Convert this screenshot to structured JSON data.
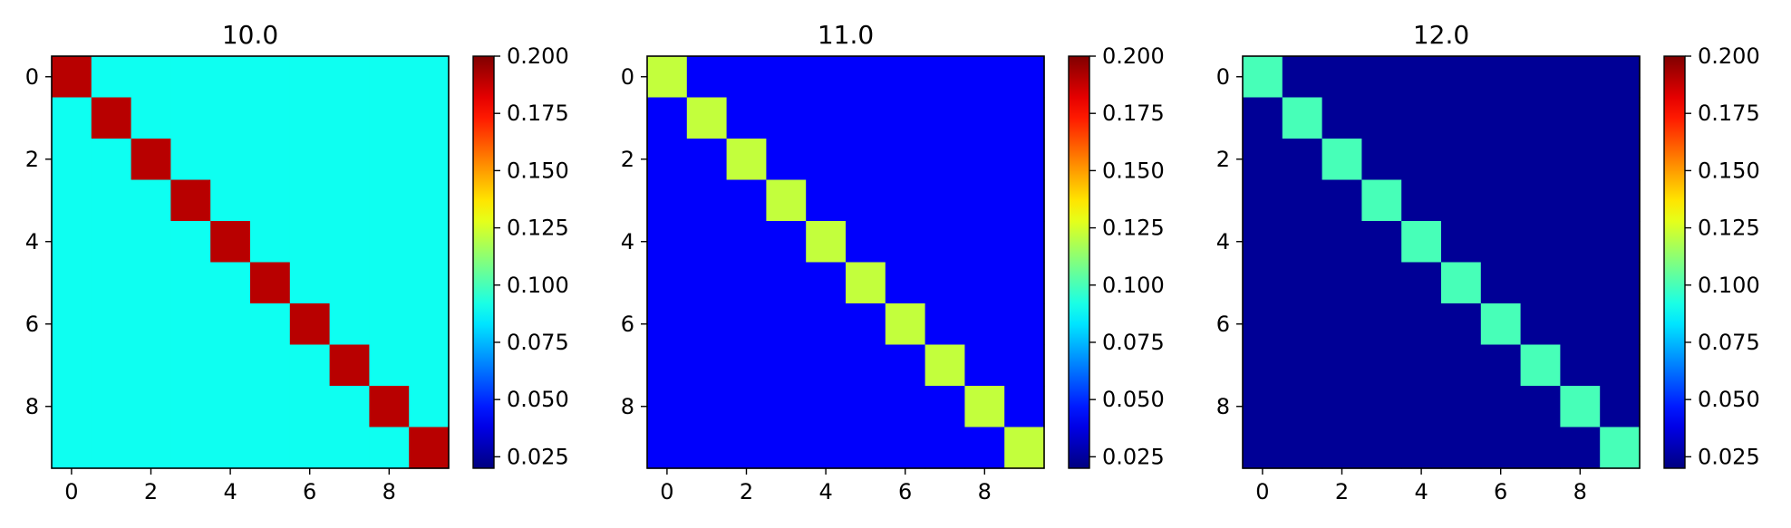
{
  "chart_data": [
    {
      "type": "heatmap",
      "title": "10.0",
      "rows": 10,
      "cols": 10,
      "diagonal_value": 0.19,
      "off_diagonal_value": 0.09,
      "x_ticks": [
        0,
        2,
        4,
        6,
        8
      ],
      "y_ticks": [
        0,
        2,
        4,
        6,
        8
      ],
      "colorbar": {
        "min": 0.02,
        "max": 0.2,
        "ticks": [
          "0.025",
          "0.050",
          "0.075",
          "0.100",
          "0.125",
          "0.150",
          "0.175",
          "0.200"
        ],
        "colormap": "jet"
      }
    },
    {
      "type": "heatmap",
      "title": "11.0",
      "rows": 10,
      "cols": 10,
      "diagonal_value": 0.122,
      "off_diagonal_value": 0.042,
      "x_ticks": [
        0,
        2,
        4,
        6,
        8
      ],
      "y_ticks": [
        0,
        2,
        4,
        6,
        8
      ],
      "colorbar": {
        "min": 0.02,
        "max": 0.2,
        "ticks": [
          "0.025",
          "0.050",
          "0.075",
          "0.100",
          "0.125",
          "0.150",
          "0.175",
          "0.200"
        ],
        "colormap": "jet"
      }
    },
    {
      "type": "heatmap",
      "title": "12.0",
      "rows": 10,
      "cols": 10,
      "diagonal_value": 0.1,
      "off_diagonal_value": 0.024,
      "x_ticks": [
        0,
        2,
        4,
        6,
        8
      ],
      "y_ticks": [
        0,
        2,
        4,
        6,
        8
      ],
      "colorbar": {
        "min": 0.02,
        "max": 0.2,
        "ticks": [
          "0.025",
          "0.050",
          "0.075",
          "0.100",
          "0.125",
          "0.150",
          "0.175",
          "0.200"
        ],
        "colormap": "jet"
      }
    }
  ]
}
